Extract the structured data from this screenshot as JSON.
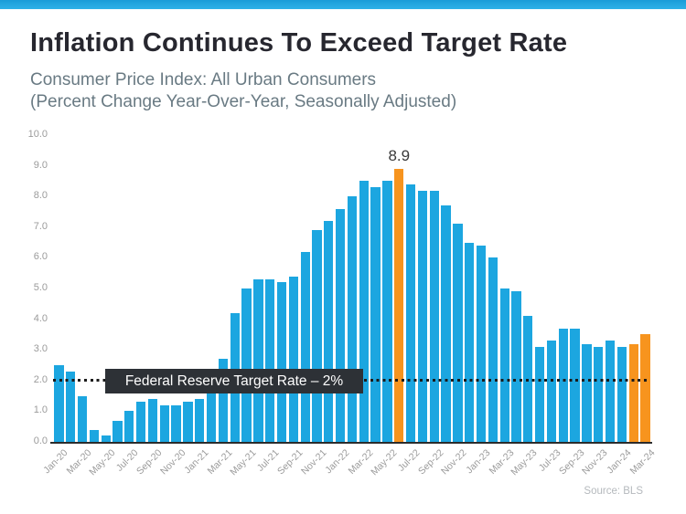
{
  "page": {
    "title": "Inflation Continues To Exceed Target Rate",
    "subtitle_line1": "Consumer Price Index: All Urban Consumers",
    "subtitle_line2": "(Percent Change Year-Over-Year, Seasonally Adjusted)",
    "source": "Source: BLS",
    "top_bar_color": "#29ABE2"
  },
  "chart_data": {
    "type": "bar",
    "title": "Inflation Continues To Exceed Target Rate",
    "subtitle": "Consumer Price Index: All Urban Consumers (Percent Change Year-Over-Year, Seasonally Adjusted)",
    "categories": [
      "Jan-20",
      "Feb-20",
      "Mar-20",
      "Apr-20",
      "May-20",
      "Jun-20",
      "Jul-20",
      "Aug-20",
      "Sep-20",
      "Oct-20",
      "Nov-20",
      "Dec-20",
      "Jan-21",
      "Feb-21",
      "Mar-21",
      "Apr-21",
      "May-21",
      "Jun-21",
      "Jul-21",
      "Aug-21",
      "Sep-21",
      "Oct-21",
      "Nov-21",
      "Dec-21",
      "Jan-22",
      "Feb-22",
      "Mar-22",
      "Apr-22",
      "May-22",
      "Jun-22",
      "Jul-22",
      "Aug-22",
      "Sep-22",
      "Oct-22",
      "Nov-22",
      "Dec-22",
      "Jan-23",
      "Feb-23",
      "Mar-23",
      "Apr-23",
      "May-23",
      "Jun-23",
      "Jul-23",
      "Aug-23",
      "Sep-23",
      "Oct-23",
      "Nov-23",
      "Dec-23",
      "Jan-24",
      "Feb-24",
      "Mar-24"
    ],
    "values": [
      2.5,
      2.3,
      1.5,
      0.4,
      0.2,
      0.7,
      1.0,
      1.3,
      1.4,
      1.2,
      1.2,
      1.3,
      1.4,
      1.7,
      2.7,
      4.2,
      5.0,
      5.3,
      5.3,
      5.2,
      5.4,
      6.2,
      6.9,
      7.2,
      7.6,
      8.0,
      8.5,
      8.3,
      8.5,
      8.9,
      8.4,
      8.2,
      8.2,
      7.7,
      7.1,
      6.5,
      6.4,
      6.0,
      5.0,
      4.9,
      4.1,
      3.1,
      3.3,
      3.7,
      3.7,
      3.2,
      3.1,
      3.3,
      3.1,
      3.2,
      3.5
    ],
    "ylim": [
      0,
      10
    ],
    "yticks": [
      "0.0",
      "1.0",
      "2.0",
      "3.0",
      "4.0",
      "5.0",
      "6.0",
      "7.0",
      "8.0",
      "9.0",
      "10.0"
    ],
    "x_label_every": 2,
    "grid": false,
    "legend": "none",
    "bar_color": "#1CA6E0",
    "highlight_color": "#F7941E",
    "highlight_indices": [
      29,
      49,
      50
    ],
    "peak_annotation": {
      "text": "8.9",
      "category": "Jun-22",
      "index": 29
    },
    "target_line": {
      "value": 2.0,
      "label": "Federal Reserve Target Rate – 2%",
      "style": "dotted",
      "line_color": "#1B1B1B",
      "label_bg": "#2D3136",
      "label_color": "#FFFFFF"
    }
  }
}
